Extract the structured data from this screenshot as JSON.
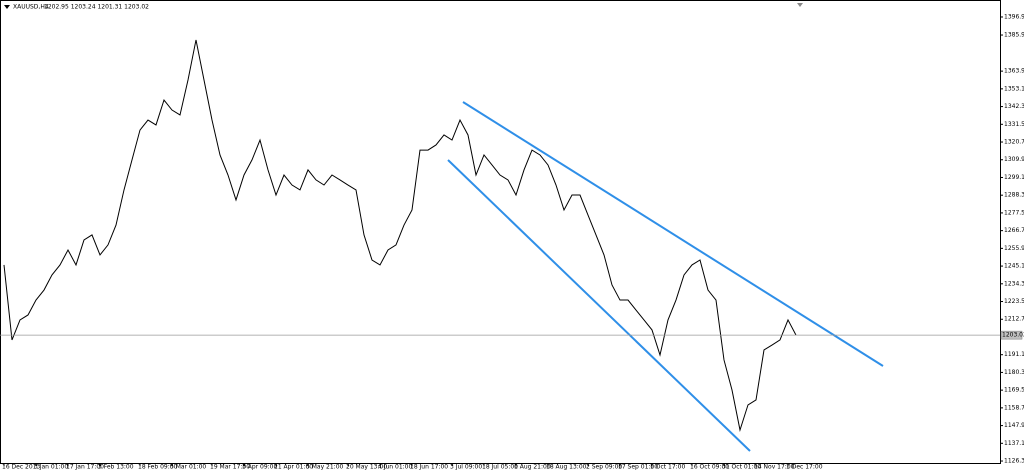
{
  "header": {
    "symbol": "XAUUSD,H4",
    "ohlc": "1202.95 1203.24 1201.31 1203.02"
  },
  "chart_data": {
    "type": "line",
    "categories": [
      "16 Dec 2013",
      null,
      null,
      null,
      "3 Jan 01:00",
      null,
      null,
      null,
      "17 Jan 17:00",
      null,
      null,
      null,
      "3 Feb 13:00",
      null,
      null,
      null,
      null,
      "18 Feb 09:00",
      null,
      null,
      null,
      "5 Mar 01:00",
      null,
      null,
      null,
      null,
      "19 Mar 17:00",
      null,
      null,
      null,
      "3 Apr 09:00",
      null,
      null,
      null,
      "21 Apr 01:00",
      null,
      null,
      null,
      "5 May 21:00",
      null,
      null,
      null,
      null,
      "20 May 13:00",
      null,
      null,
      null,
      "4 Jun 01:00",
      null,
      null,
      null,
      "18 Jun 17:00",
      null,
      null,
      null,
      null,
      "3 Jul 09:00",
      null,
      null,
      null,
      "18 Jul 05:00",
      null,
      null,
      null,
      "1 Aug 21:00",
      null,
      null,
      null,
      "18 Aug 13:00",
      null,
      null,
      null,
      null,
      "2 Sep 09:00",
      null,
      null,
      null,
      "17 Sep 01:00",
      null,
      null,
      null,
      "1 Oct 17:00",
      null,
      null,
      null,
      null,
      "16 Oct 09:00",
      null,
      null,
      null,
      "31 Oct 01:00",
      null,
      null,
      null,
      "14 Nov 17:00",
      null,
      null,
      null,
      "1 Dec 17:00",
      null
    ],
    "series": [
      {
        "name": "XAUUSD",
        "color": "#000000",
        "values": [
          1245.8,
          1200.1,
          1212.3,
          1215.3,
          1224.4,
          1230.5,
          1239.7,
          1245.8,
          1254.9,
          1245.8,
          1261.0,
          1264.1,
          1251.9,
          1258.0,
          1270.1,
          1291.5,
          1309.8,
          1328.0,
          1334.1,
          1331.1,
          1346.3,
          1340.2,
          1337.2,
          1358.5,
          1382.9,
          1358.5,
          1334.1,
          1312.8,
          1300.6,
          1285.4,
          1300.6,
          1309.8,
          1321.9,
          1303.7,
          1288.4,
          1300.6,
          1294.5,
          1291.5,
          1303.7,
          1297.6,
          1294.5,
          1300.6,
          1297.6,
          1294.5,
          1291.5,
          1264.1,
          1248.8,
          1245.8,
          1254.9,
          1258.0,
          1270.1,
          1279.3,
          1315.8,
          1315.8,
          1318.9,
          1325.0,
          1321.9,
          1334.1,
          1325.0,
          1300.6,
          1312.8,
          1306.7,
          1300.6,
          1297.6,
          1288.4,
          1303.7,
          1315.8,
          1312.8,
          1306.7,
          1294.5,
          1279.3,
          1288.4,
          1288.4,
          1276.2,
          1264.1,
          1251.9,
          1233.6,
          1224.4,
          1224.4,
          1218.3,
          1212.3,
          1206.2,
          1190.9,
          1212.3,
          1224.4,
          1239.7,
          1245.8,
          1248.8,
          1230.5,
          1224.4,
          1187.9,
          1169.6,
          1145.2,
          1160.5,
          1163.5,
          1194.0,
          1197.0,
          1200.1,
          1212.3,
          1203.0
        ]
      }
    ],
    "current_price": {
      "value": 1203.02,
      "label": "1203.02"
    },
    "ylim": [
      1125.1,
      1404.2
    ],
    "yticks": [
      {
        "value": 1396.9,
        "label": "1396.90"
      },
      {
        "value": 1385.9,
        "label": "1385.90"
      },
      {
        "value": 1363.9,
        "label": "1363.90"
      },
      {
        "value": 1353.1,
        "label": "1353.10"
      },
      {
        "value": 1342.3,
        "label": "1342.30"
      },
      {
        "value": 1331.5,
        "label": "1331.50"
      },
      {
        "value": 1320.7,
        "label": "1320.70"
      },
      {
        "value": 1309.9,
        "label": "1309.90"
      },
      {
        "value": 1299.1,
        "label": "1299.10"
      },
      {
        "value": 1288.3,
        "label": "1288.30"
      },
      {
        "value": 1277.5,
        "label": "1277.50"
      },
      {
        "value": 1266.7,
        "label": "1266.70"
      },
      {
        "value": 1255.9,
        "label": "1255.90"
      },
      {
        "value": 1245.1,
        "label": "1245.10"
      },
      {
        "value": 1234.3,
        "label": "1234.30"
      },
      {
        "value": 1223.5,
        "label": "1223.50"
      },
      {
        "value": 1212.7,
        "label": "1212.70"
      },
      {
        "value": 1191.1,
        "label": "1191.10"
      },
      {
        "value": 1180.3,
        "label": "1180.30"
      },
      {
        "value": 1169.5,
        "label": "1169.50"
      },
      {
        "value": 1158.7,
        "label": "1158.70"
      },
      {
        "value": 1147.9,
        "label": "1147.90"
      },
      {
        "value": 1137.1,
        "label": "1137.10"
      },
      {
        "value": 1126.3,
        "label": "1126.30"
      }
    ],
    "grid": false
  }
}
